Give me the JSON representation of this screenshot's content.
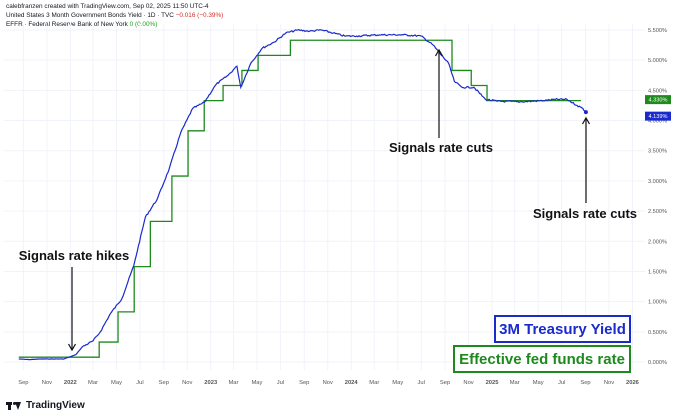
{
  "header": {
    "creator": "calebfranzen created with TradingView.com, Sep 02, 2025 11:50 UTC-4",
    "series1_label": "United States 3 Month Government Bonds Yield · 1D · TVC",
    "series1_change": "−0.016 (−0.39%)",
    "series2_label": "EFFR · Federal Reserve Bank of New York",
    "series2_change": "0 (0.00%)"
  },
  "footer": {
    "brand": "TradingView"
  },
  "colors": {
    "treasury": "#1a2acc",
    "effr": "#1e8a1e",
    "grid": "#f0f3fa",
    "axis_text": "#555555"
  },
  "chart_data": {
    "type": "line",
    "x_tick_labels": [
      "Sep",
      "Nov",
      "2022",
      "Mar",
      "May",
      "Jul",
      "Sep",
      "Nov",
      "2023",
      "Mar",
      "May",
      "Jul",
      "Sep",
      "Nov",
      "2024",
      "Mar",
      "May",
      "Jul",
      "Sep",
      "Nov",
      "2025",
      "Mar",
      "May",
      "Jul",
      "Sep",
      "Nov",
      "2026"
    ],
    "y_tick_labels": [
      "0.000%",
      "0.500%",
      "1.000%",
      "1.500%",
      "2.000%",
      "2.500%",
      "3.000%",
      "3.500%",
      "4.000%",
      "4.500%",
      "5.000%",
      "5.500%"
    ],
    "ylim": [
      0,
      5.5
    ],
    "last_values": {
      "treasury": "4.139%",
      "effr": "4.330%"
    },
    "series": [
      {
        "name": "3M Treasury Yield",
        "points": [
          [
            "2021-08-20",
            0.05
          ],
          [
            "2021-09-15",
            0.04
          ],
          [
            "2021-10-15",
            0.05
          ],
          [
            "2021-11-15",
            0.05
          ],
          [
            "2021-12-15",
            0.05
          ],
          [
            "2022-01-15",
            0.12
          ],
          [
            "2022-02-01",
            0.25
          ],
          [
            "2022-03-01",
            0.35
          ],
          [
            "2022-03-20",
            0.5
          ],
          [
            "2022-04-15",
            0.8
          ],
          [
            "2022-05-15",
            1.05
          ],
          [
            "2022-06-15",
            1.6
          ],
          [
            "2022-07-15",
            2.4
          ],
          [
            "2022-08-15",
            2.7
          ],
          [
            "2022-09-15",
            3.2
          ],
          [
            "2022-10-15",
            3.8
          ],
          [
            "2022-11-15",
            4.2
          ],
          [
            "2022-12-15",
            4.3
          ],
          [
            "2023-01-15",
            4.6
          ],
          [
            "2023-02-15",
            4.75
          ],
          [
            "2023-03-10",
            4.9
          ],
          [
            "2023-03-20",
            4.55
          ],
          [
            "2023-04-15",
            4.95
          ],
          [
            "2023-05-15",
            5.2
          ],
          [
            "2023-06-15",
            5.3
          ],
          [
            "2023-07-15",
            5.45
          ],
          [
            "2023-08-15",
            5.5
          ],
          [
            "2023-09-15",
            5.48
          ],
          [
            "2023-10-15",
            5.5
          ],
          [
            "2023-11-15",
            5.45
          ],
          [
            "2023-12-15",
            5.4
          ],
          [
            "2024-01-15",
            5.4
          ],
          [
            "2024-03-15",
            5.42
          ],
          [
            "2024-05-15",
            5.42
          ],
          [
            "2024-07-01",
            5.4
          ],
          [
            "2024-08-01",
            5.25
          ],
          [
            "2024-08-20",
            5.1
          ],
          [
            "2024-09-10",
            4.95
          ],
          [
            "2024-09-25",
            4.65
          ],
          [
            "2024-10-15",
            4.55
          ],
          [
            "2024-11-15",
            4.55
          ],
          [
            "2024-12-15",
            4.35
          ],
          [
            "2025-01-15",
            4.32
          ],
          [
            "2025-03-15",
            4.31
          ],
          [
            "2025-05-15",
            4.33
          ],
          [
            "2025-06-15",
            4.35
          ],
          [
            "2025-07-15",
            4.35
          ],
          [
            "2025-08-10",
            4.25
          ],
          [
            "2025-08-25",
            4.2
          ],
          [
            "2025-09-02",
            4.139
          ]
        ]
      },
      {
        "name": "Effective fed funds rate",
        "points": [
          [
            "2021-08-20",
            0.08
          ],
          [
            "2022-03-17",
            0.33
          ],
          [
            "2022-05-05",
            0.83
          ],
          [
            "2022-06-16",
            1.58
          ],
          [
            "2022-07-28",
            2.33
          ],
          [
            "2022-09-22",
            3.08
          ],
          [
            "2022-11-03",
            3.83
          ],
          [
            "2022-12-15",
            4.33
          ],
          [
            "2023-02-02",
            4.58
          ],
          [
            "2023-03-23",
            4.83
          ],
          [
            "2023-05-04",
            5.08
          ],
          [
            "2023-07-27",
            5.33
          ],
          [
            "2024-09-19",
            4.83
          ],
          [
            "2024-11-08",
            4.58
          ],
          [
            "2024-12-19",
            4.33
          ],
          [
            "2025-08-20",
            4.33
          ]
        ]
      }
    ],
    "annotations": [
      {
        "text": "Signals rate hikes",
        "date": "2022-01-05",
        "value": 0.05
      },
      {
        "text": "Signals rate cuts",
        "date": "2024-08-01",
        "value": 5.42
      },
      {
        "text": "Signals rate cuts",
        "date": "2025-08-31",
        "value": 4.05
      }
    ],
    "legend": [
      "3M Treasury Yield",
      "Effective fed funds rate"
    ],
    "legend_position": "bottom-right"
  }
}
